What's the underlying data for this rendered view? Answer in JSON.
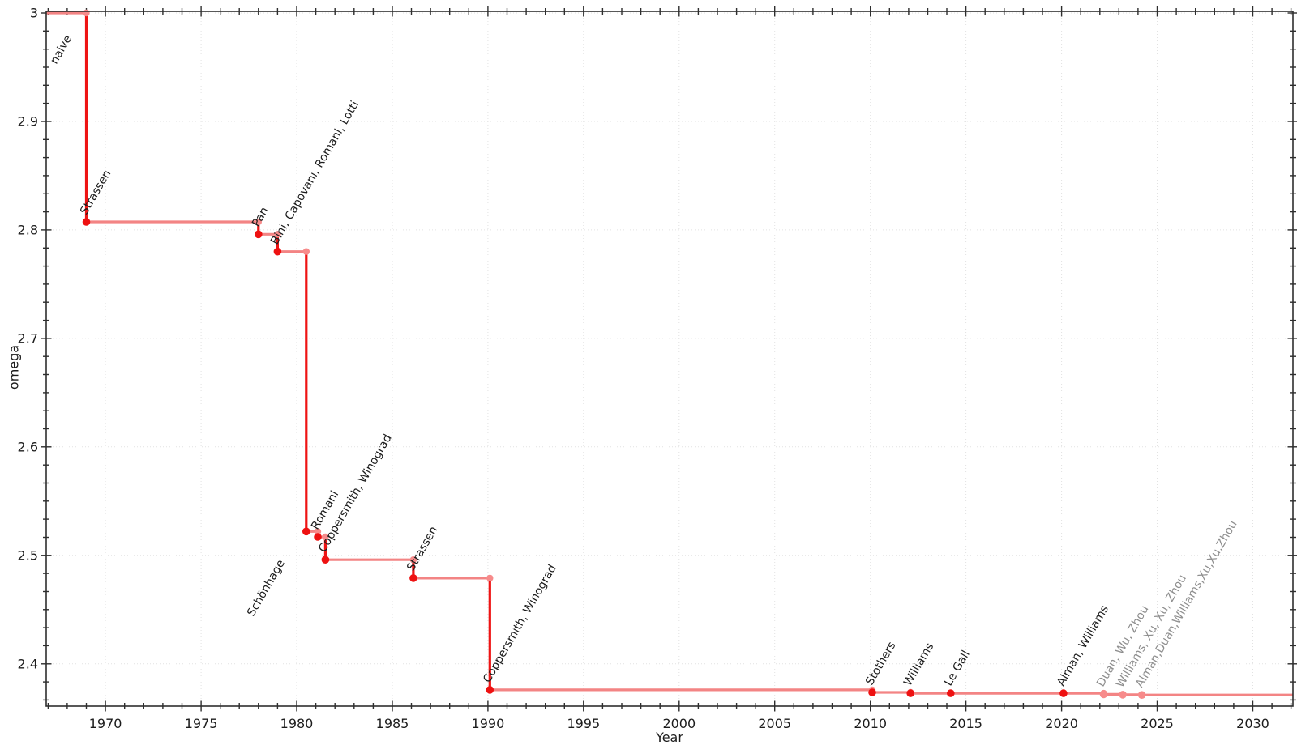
{
  "page": {
    "background": "#ffffff"
  },
  "axes": {
    "xlabel": "Year",
    "ylabel": "omega",
    "x_tick_values": [
      1970,
      1975,
      1980,
      1985,
      1990,
      1995,
      2000,
      2005,
      2010,
      2015,
      2020,
      2025,
      2030
    ],
    "x_tick_labels": [
      "1970",
      "1975",
      "1980",
      "1985",
      "1990",
      "1995",
      "2000",
      "2005",
      "2010",
      "2015",
      "2020",
      "2025",
      "2030"
    ],
    "y_tick_values": [
      3,
      2.9,
      2.8,
      2.7,
      2.6,
      2.5,
      2.4
    ],
    "y_tick_labels": [
      "3",
      "2.9",
      "2.8",
      "2.7",
      "2.6",
      "2.5",
      "2.4"
    ]
  },
  "colors": {
    "line_light": "#f38484",
    "line_dark": "#ee1414",
    "marker_dark": "#ee1111",
    "marker_light": "#f78b8b",
    "label_confirmed": "#1c1c1c",
    "label_unconfirmed": "#8e8e8e",
    "grid": "#e2e2e2",
    "spine": "#2e2e2e",
    "tick_label": "#1c1c1c"
  },
  "chart_data": {
    "type": "line",
    "step_mode": "post",
    "title": "",
    "xlabel": "Year",
    "ylabel": "omega",
    "xlim": [
      1966.9,
      2032.1
    ],
    "ylim": [
      2.361,
      3.0015
    ],
    "grid": true,
    "legend": false,
    "initial": {
      "label": "naive",
      "omega": 3.0,
      "label_dx": -34,
      "label_dy": 66
    },
    "events": [
      {
        "year": 1969.0,
        "omega": 2.8074,
        "label": "Strassen",
        "confirmed": true
      },
      {
        "year": 1978.0,
        "omega": 2.796,
        "label": "Pan",
        "confirmed": true
      },
      {
        "year": 1979.0,
        "omega": 2.78,
        "label": "Bini, Capovani, Romani, Lotti",
        "confirmed": true
      },
      {
        "year": 1980.5,
        "omega": 2.522,
        "label": "Schönhage",
        "confirmed": true,
        "label_dx": -62,
        "label_dy": 108
      },
      {
        "year": 1981.1,
        "omega": 2.517,
        "label": "Romani",
        "confirmed": true
      },
      {
        "year": 1981.5,
        "omega": 2.496,
        "label": "Coppersmith, Winograd",
        "confirmed": true
      },
      {
        "year": 1986.1,
        "omega": 2.479,
        "label": "Strassen",
        "confirmed": true
      },
      {
        "year": 1990.1,
        "omega": 2.376,
        "label": "Coppersmith, Winograd",
        "confirmed": true
      },
      {
        "year": 2010.1,
        "omega": 2.3737,
        "label": "Stothers",
        "confirmed": true
      },
      {
        "year": 2012.1,
        "omega": 2.37287,
        "label": "Williams",
        "confirmed": true
      },
      {
        "year": 2014.2,
        "omega": 2.372864,
        "label": "Le Gall",
        "confirmed": true
      },
      {
        "year": 2020.1,
        "omega": 2.37286,
        "label": "Alman, Williams",
        "confirmed": true
      },
      {
        "year": 2022.2,
        "omega": 2.371866,
        "label": "Duan, Wu, Zhou",
        "confirmed": false
      },
      {
        "year": 2023.2,
        "omega": 2.371552,
        "label": "Williams, Xu, Xu, Zhou",
        "confirmed": false
      },
      {
        "year": 2024.2,
        "omega": 2.371339,
        "label": "Alman,Duan,Williams,Xu,Xu,Zhou",
        "confirmed": false
      }
    ]
  }
}
